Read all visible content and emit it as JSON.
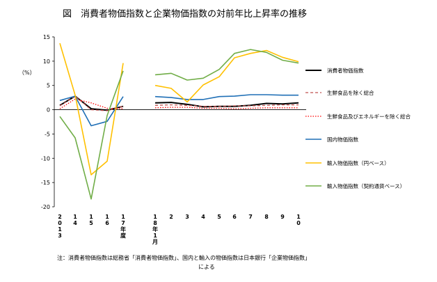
{
  "chart_data": {
    "type": "line",
    "title": "図　消費者物価指数と企業物価指数の対前年比上昇率の推移",
    "ylabel": "（%）",
    "ylim": [
      -20,
      15
    ],
    "yticks": [
      "15",
      "10",
      "5",
      "0",
      "-5",
      "-10",
      "-15",
      "-20"
    ],
    "grid": false,
    "legend_position": "right",
    "categories": [
      "2013",
      "14",
      "15",
      "16",
      "17年度",
      "18年1月",
      "2",
      "3",
      "4",
      "5",
      "6",
      "7",
      "8",
      "9",
      "10"
    ],
    "x_tick_labels": [
      "2\n0\n1\n3",
      "1\n4",
      "1\n5",
      "1\n6",
      "1\n7\n年\n度",
      "1\n8\n年\n1\n月",
      "2",
      "3",
      "4",
      "5",
      "6",
      "7",
      "8",
      "9",
      "1\n0"
    ],
    "series": [
      {
        "name": "消費者物価指数",
        "color": "#000000",
        "dash": "solid",
        "width": 2,
        "values": [
          0.9,
          2.8,
          0.2,
          -0.1,
          0.7,
          1.4,
          1.5,
          1.1,
          0.6,
          0.7,
          0.7,
          0.9,
          1.3,
          1.2,
          1.4
        ]
      },
      {
        "name": "生鮮食品を除く総合",
        "color": "#c0504d",
        "dash": "4,3",
        "width": 1.3,
        "values": [
          0.8,
          2.8,
          0.0,
          -0.2,
          0.7,
          0.9,
          1.0,
          0.9,
          0.7,
          0.7,
          0.8,
          0.8,
          0.9,
          1.0,
          1.0
        ]
      },
      {
        "name": "生鮮食品及びエネルギーを除く総合",
        "color": "#ff0000",
        "dash": "1.5,2",
        "width": 1.3,
        "values": [
          0.2,
          2.2,
          1.4,
          0.3,
          0.2,
          0.4,
          0.5,
          0.5,
          0.3,
          0.3,
          0.2,
          0.3,
          0.4,
          0.4,
          0.4
        ]
      },
      {
        "name": "国内物価指数",
        "color": "#1f6fb6",
        "dash": "solid",
        "width": 1.6,
        "values": [
          1.9,
          2.8,
          -3.3,
          -2.4,
          2.7,
          2.7,
          2.5,
          2.1,
          2.1,
          2.7,
          2.8,
          3.1,
          3.1,
          3.0,
          3.0
        ]
      },
      {
        "name": "輸入物価指数（円ベース）",
        "color": "#ffc000",
        "dash": "solid",
        "width": 1.6,
        "values": [
          13.7,
          3.0,
          -13.4,
          -10.6,
          9.6,
          5.0,
          4.4,
          1.6,
          5.1,
          6.8,
          10.7,
          11.6,
          12.2,
          10.8,
          9.9
        ]
      },
      {
        "name": "輸入物価指数（契約通貨ベース）",
        "color": "#70ad47",
        "dash": "solid",
        "width": 1.6,
        "values": [
          -1.4,
          -5.8,
          -18.4,
          -1.2,
          8.0,
          7.2,
          7.5,
          6.1,
          6.5,
          8.3,
          11.6,
          12.4,
          11.8,
          10.2,
          9.6
        ]
      }
    ]
  },
  "footnote_line1": "注：消費者物価指数は総務省「消費者物価指数」、国内と輸入の物価指数は日本銀行「企業物価指数」",
  "footnote_line2": "による"
}
